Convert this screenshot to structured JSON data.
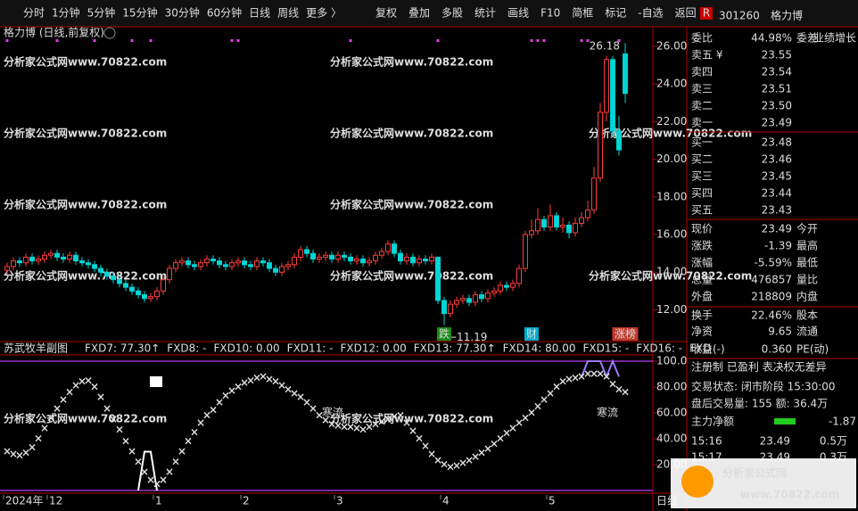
{
  "toolbar": {
    "periods": [
      "分时",
      "1分钟",
      "5分钟",
      "15分钟",
      "30分钟",
      "60分钟",
      "日线",
      "周线",
      "更多 〉"
    ],
    "active_period": 6,
    "buttons": [
      "复权",
      "叠加",
      "多股",
      "统计",
      "画线",
      "F10",
      "简框",
      "标记",
      "-自选",
      "返回"
    ]
  },
  "watermark": "分析家公式网www.70822.com",
  "main_chart": {
    "type": "candlestick",
    "title": "格力博 (日线,前复权)",
    "ylim": [
      10.4,
      26.4
    ],
    "yticks": [
      {
        "value": 26,
        "label": "26.00"
      },
      {
        "value": 24,
        "label": "24.00"
      },
      {
        "value": 22,
        "label": "22.00"
      },
      {
        "value": 20,
        "label": "20.00"
      },
      {
        "value": 18,
        "label": "18.00"
      },
      {
        "value": 16,
        "label": "16.00"
      },
      {
        "value": 14,
        "label": "14.00"
      },
      {
        "value": 12,
        "label": "12.00"
      }
    ],
    "up_color": "#ff3c3c",
    "down_color": "#00d4d4",
    "candles": [
      [
        14.1,
        14.5,
        13.9,
        14.3
      ],
      [
        14.3,
        14.8,
        14.1,
        14.6
      ],
      [
        14.6,
        14.8,
        14.3,
        14.5
      ],
      [
        14.5,
        15.0,
        14.3,
        14.8
      ],
      [
        14.8,
        15.0,
        14.4,
        14.6
      ],
      [
        14.6,
        14.9,
        14.4,
        14.7
      ],
      [
        14.7,
        15.1,
        14.5,
        14.9
      ],
      [
        14.9,
        15.2,
        14.7,
        15.0
      ],
      [
        15.0,
        15.2,
        14.6,
        14.8
      ],
      [
        14.8,
        15.0,
        14.5,
        14.7
      ],
      [
        14.7,
        15.1,
        14.5,
        14.9
      ],
      [
        14.9,
        15.1,
        14.4,
        14.6
      ],
      [
        14.6,
        14.8,
        14.3,
        14.5
      ],
      [
        14.5,
        14.7,
        14.2,
        14.4
      ],
      [
        14.4,
        14.6,
        14.0,
        14.2
      ],
      [
        14.2,
        14.4,
        13.8,
        14.0
      ],
      [
        14.0,
        14.2,
        13.6,
        13.8
      ],
      [
        13.8,
        14.0,
        13.4,
        13.6
      ],
      [
        13.6,
        13.8,
        13.2,
        13.4
      ],
      [
        13.4,
        13.6,
        13.0,
        13.2
      ],
      [
        13.2,
        13.4,
        12.8,
        13.0
      ],
      [
        13.0,
        13.2,
        12.6,
        12.8
      ],
      [
        12.8,
        13.0,
        12.4,
        12.6
      ],
      [
        12.6,
        12.9,
        12.4,
        12.7
      ],
      [
        12.7,
        13.2,
        12.5,
        13.0
      ],
      [
        13.0,
        13.8,
        12.8,
        13.6
      ],
      [
        13.6,
        14.4,
        13.4,
        14.2
      ],
      [
        14.2,
        14.7,
        14.0,
        14.5
      ],
      [
        14.5,
        14.8,
        14.3,
        14.6
      ],
      [
        14.6,
        14.8,
        14.2,
        14.4
      ],
      [
        14.4,
        14.6,
        14.1,
        14.3
      ],
      [
        14.3,
        14.7,
        14.1,
        14.5
      ],
      [
        14.5,
        14.9,
        14.3,
        14.7
      ],
      [
        14.7,
        14.9,
        14.4,
        14.6
      ],
      [
        14.6,
        14.8,
        14.2,
        14.4
      ],
      [
        14.4,
        14.6,
        14.1,
        14.3
      ],
      [
        14.3,
        14.7,
        14.1,
        14.5
      ],
      [
        14.5,
        14.8,
        14.3,
        14.6
      ],
      [
        14.6,
        14.8,
        14.2,
        14.4
      ],
      [
        14.4,
        14.6,
        14.1,
        14.3
      ],
      [
        14.3,
        14.8,
        14.1,
        14.6
      ],
      [
        14.6,
        14.8,
        14.3,
        14.5
      ],
      [
        14.5,
        14.7,
        14.0,
        14.2
      ],
      [
        14.2,
        14.4,
        13.8,
        14.0
      ],
      [
        14.0,
        14.5,
        13.8,
        14.3
      ],
      [
        14.3,
        14.6,
        14.1,
        14.4
      ],
      [
        14.4,
        15.0,
        14.2,
        14.8
      ],
      [
        14.8,
        15.4,
        14.6,
        15.2
      ],
      [
        15.2,
        15.4,
        14.8,
        15.0
      ],
      [
        15.0,
        15.2,
        14.5,
        14.7
      ],
      [
        14.7,
        15.0,
        14.5,
        14.8
      ],
      [
        14.8,
        15.1,
        14.6,
        14.9
      ],
      [
        14.9,
        15.1,
        14.5,
        14.7
      ],
      [
        14.7,
        15.1,
        14.5,
        14.9
      ],
      [
        14.9,
        15.1,
        14.6,
        14.8
      ],
      [
        14.8,
        15.0,
        14.4,
        14.6
      ],
      [
        14.6,
        14.9,
        14.4,
        14.7
      ],
      [
        14.7,
        14.9,
        14.3,
        14.5
      ],
      [
        14.5,
        14.8,
        14.3,
        14.6
      ],
      [
        14.6,
        15.1,
        14.4,
        14.9
      ],
      [
        14.9,
        15.3,
        14.7,
        15.1
      ],
      [
        15.1,
        15.7,
        14.9,
        15.5
      ],
      [
        15.5,
        15.7,
        14.8,
        15.0
      ],
      [
        15.0,
        15.2,
        14.4,
        14.6
      ],
      [
        14.6,
        15.0,
        14.4,
        14.8
      ],
      [
        14.8,
        15.0,
        14.3,
        14.5
      ],
      [
        14.5,
        14.9,
        14.3,
        14.7
      ],
      [
        14.7,
        14.9,
        14.4,
        14.6
      ],
      [
        14.6,
        15.0,
        14.4,
        14.8
      ],
      [
        14.8,
        14.8,
        12.3,
        12.5
      ],
      [
        12.5,
        12.7,
        11.19,
        11.8
      ],
      [
        11.8,
        12.5,
        11.6,
        12.3
      ],
      [
        12.3,
        12.7,
        12.1,
        12.5
      ],
      [
        12.5,
        12.8,
        12.3,
        12.6
      ],
      [
        12.6,
        12.8,
        12.2,
        12.4
      ],
      [
        12.4,
        13.0,
        12.2,
        12.8
      ],
      [
        12.8,
        13.0,
        12.4,
        12.6
      ],
      [
        12.6,
        13.1,
        12.4,
        12.9
      ],
      [
        12.9,
        13.2,
        12.7,
        13.0
      ],
      [
        13.0,
        13.5,
        12.8,
        13.3
      ],
      [
        13.3,
        13.5,
        13.0,
        13.2
      ],
      [
        13.2,
        13.6,
        13.0,
        13.4
      ],
      [
        13.4,
        14.4,
        13.2,
        14.2
      ],
      [
        14.2,
        16.2,
        14.0,
        16.0
      ],
      [
        16.0,
        16.8,
        15.8,
        16.2
      ],
      [
        16.2,
        17.4,
        16.0,
        16.8
      ],
      [
        16.8,
        17.0,
        16.2,
        16.4
      ],
      [
        16.4,
        17.6,
        16.2,
        17.0
      ],
      [
        17.0,
        17.2,
        16.2,
        16.4
      ],
      [
        16.4,
        16.9,
        16.1,
        16.5
      ],
      [
        16.5,
        16.7,
        15.8,
        16.1
      ],
      [
        16.1,
        16.9,
        15.9,
        16.6
      ],
      [
        16.6,
        17.2,
        16.4,
        16.9
      ],
      [
        16.9,
        17.8,
        16.7,
        17.3
      ],
      [
        17.3,
        19.6,
        17.1,
        19.0
      ],
      [
        19.0,
        23.0,
        18.8,
        22.5
      ],
      [
        22.5,
        25.5,
        22.0,
        25.3
      ],
      [
        25.3,
        25.5,
        21.2,
        21.5
      ],
      [
        21.5,
        22.3,
        20.2,
        20.5
      ],
      [
        25.6,
        26.18,
        23.0,
        23.5
      ]
    ],
    "top_markers": [
      0,
      8,
      14,
      20,
      23,
      36,
      37,
      55,
      69,
      84,
      85,
      86,
      92,
      93,
      98
    ],
    "annotations": [
      {
        "index": 99,
        "value": 26.18,
        "text": "26.18"
      },
      {
        "index": 70,
        "value": 11.19,
        "text": "←11.19"
      }
    ],
    "badges": [
      {
        "index": 70,
        "text": "跌",
        "color": "#1a8a1a"
      },
      {
        "index": 84,
        "text": "财",
        "color": "#00aacc"
      },
      {
        "index": 99,
        "text": "涨榜",
        "color": "#c0392b"
      }
    ],
    "x_ticks": [
      {
        "index": 0,
        "label": "2024年"
      },
      {
        "index": 7,
        "label": "12"
      },
      {
        "index": 24,
        "label": "1"
      },
      {
        "index": 38,
        "label": "2"
      },
      {
        "index": 53,
        "label": "3"
      },
      {
        "index": 70,
        "label": "4"
      },
      {
        "index": 87,
        "label": "5"
      }
    ],
    "x_axis_tail": "日线"
  },
  "indicator": {
    "type": "scatter",
    "title": "苏武牧羊副图",
    "header": [
      {
        "text": "FXD7: 77.30↑",
        "color": "#33dd33"
      },
      {
        "text": "FXD8: -",
        "color": "#e07b39"
      },
      {
        "text": "FXD10: 0.00",
        "color": "#ffffff"
      },
      {
        "text": "FXD11: -",
        "color": "#ffffff"
      },
      {
        "text": "FXD12: 0.00",
        "color": "#ff44ff"
      },
      {
        "text": "FXD13: 77.30↑",
        "color": "#b37bff"
      },
      {
        "text": "FXD14: 80.00",
        "color": "#b37bff"
      },
      {
        "text": "FXD15: -",
        "color": "#ffffff"
      },
      {
        "text": "FXD16: -",
        "color": "#ffffff"
      },
      {
        "text": "FXD",
        "color": "#ffffff"
      }
    ],
    "ylim": [
      0,
      100
    ],
    "yticks": [
      {
        "value": 100,
        "label": "100.0"
      },
      {
        "value": 80,
        "label": "80.00"
      },
      {
        "value": 60,
        "label": "60.00"
      },
      {
        "value": 40,
        "label": "40.00"
      },
      {
        "value": 20,
        "label": "20.00"
      }
    ],
    "ref_lines": [
      100,
      0
    ],
    "ref_color": "#9933cc",
    "up_color": "#33dd33",
    "down_color": "#e07b39",
    "values": [
      30,
      28,
      27,
      29,
      33,
      40,
      48,
      56,
      63,
      70,
      76,
      81,
      84,
      85,
      80,
      72,
      63,
      55,
      47,
      38,
      30,
      22,
      14,
      8,
      5,
      8,
      14,
      22,
      30,
      38,
      45,
      52,
      58,
      62,
      68,
      73,
      77,
      80,
      83,
      85,
      87,
      88,
      86,
      84,
      81,
      78,
      75,
      72,
      68,
      63,
      58,
      54,
      51,
      50,
      49,
      49,
      48,
      47,
      49,
      51,
      53,
      55,
      57,
      58,
      52,
      46,
      40,
      34,
      28,
      23,
      20,
      18,
      19,
      21,
      23,
      26,
      29,
      32,
      36,
      40,
      44,
      48,
      52,
      56,
      60,
      65,
      70,
      75,
      80,
      84,
      86,
      87,
      88,
      90,
      90,
      90,
      88,
      82,
      78,
      76
    ],
    "spike": {
      "index": [
        21,
        22,
        23,
        24
      ],
      "values": [
        0,
        30,
        30,
        0
      ],
      "color": "#ffffff"
    },
    "band": {
      "index": [
        92,
        93,
        95,
        96,
        97,
        98
      ],
      "values": [
        88,
        100,
        100,
        88,
        100,
        88
      ],
      "color": "#9b7bff"
    },
    "labels": [
      {
        "index": 53,
        "value": 60,
        "text": "寒流"
      },
      {
        "index": 97,
        "value": 60,
        "text": "寒流"
      }
    ]
  },
  "quote_panel": {
    "badge": "R",
    "code": "301260",
    "name": "格力博",
    "tag": "业绩增长",
    "rows": [
      {
        "label": "委比",
        "value": "44.98%",
        "label2": "委差",
        "color": "#ff4444"
      },
      {
        "label": "卖五 ¥",
        "value": "23.55",
        "color": "#33cc33"
      },
      {
        "label": "卖四",
        "value": "23.54",
        "color": "#33cc33"
      },
      {
        "label": "卖三",
        "value": "23.51",
        "color": "#33cc33"
      },
      {
        "label": "卖二",
        "value": "23.50",
        "color": "#33cc33"
      },
      {
        "label": "卖一",
        "value": "23.49",
        "color": "#33cc33"
      },
      {
        "label": "买一",
        "value": "23.48",
        "color": "#33cc33"
      },
      {
        "label": "买二",
        "value": "23.46",
        "color": "#33cc33"
      },
      {
        "label": "买三",
        "value": "23.45",
        "color": "#33cc33"
      },
      {
        "label": "买四",
        "value": "23.44",
        "color": "#33cc33"
      },
      {
        "label": "买五",
        "value": "23.43",
        "color": "#33cc33"
      },
      {
        "label": "现价",
        "value": "23.49",
        "label2": "今开",
        "color": "#33cc33"
      },
      {
        "label": "涨跌",
        "value": "-1.39",
        "label2": "最高",
        "color": "#33cc33"
      },
      {
        "label": "涨幅",
        "value": "-5.59%",
        "label2": "最低",
        "color": "#33cc33"
      },
      {
        "label": "总量",
        "value": "476857",
        "label2": "量比",
        "color": "#ffcc33"
      },
      {
        "label": "外盘",
        "value": "218809",
        "label2": "内盘",
        "color": "#ff4444"
      },
      {
        "label": "换手",
        "value": "22.46%",
        "label2": "股本",
        "color": "#dddddd"
      },
      {
        "label": "净资",
        "value": "9.65",
        "label2": "流通",
        "color": "#dddddd"
      },
      {
        "label": "收益(-)",
        "value": "0.360",
        "label2": "PE(动)",
        "color": "#dddddd"
      }
    ],
    "lines": [
      "注册制 已盈利 表决权无差异",
      "交易状态: 闭市阶段 15:30:00",
      "盘后交易量: 155  额: 36.4万"
    ],
    "main_flow": {
      "label": "主力净额",
      "value": "-1.87"
    },
    "ticks": [
      {
        "time": "15:16",
        "price": "23.49",
        "vol": "0.5万"
      },
      {
        "time": "15:17",
        "price": "23.49",
        "vol": "0.3万"
      }
    ]
  },
  "logo": {
    "title": "分析家公式网",
    "url": "www.70822.com"
  }
}
